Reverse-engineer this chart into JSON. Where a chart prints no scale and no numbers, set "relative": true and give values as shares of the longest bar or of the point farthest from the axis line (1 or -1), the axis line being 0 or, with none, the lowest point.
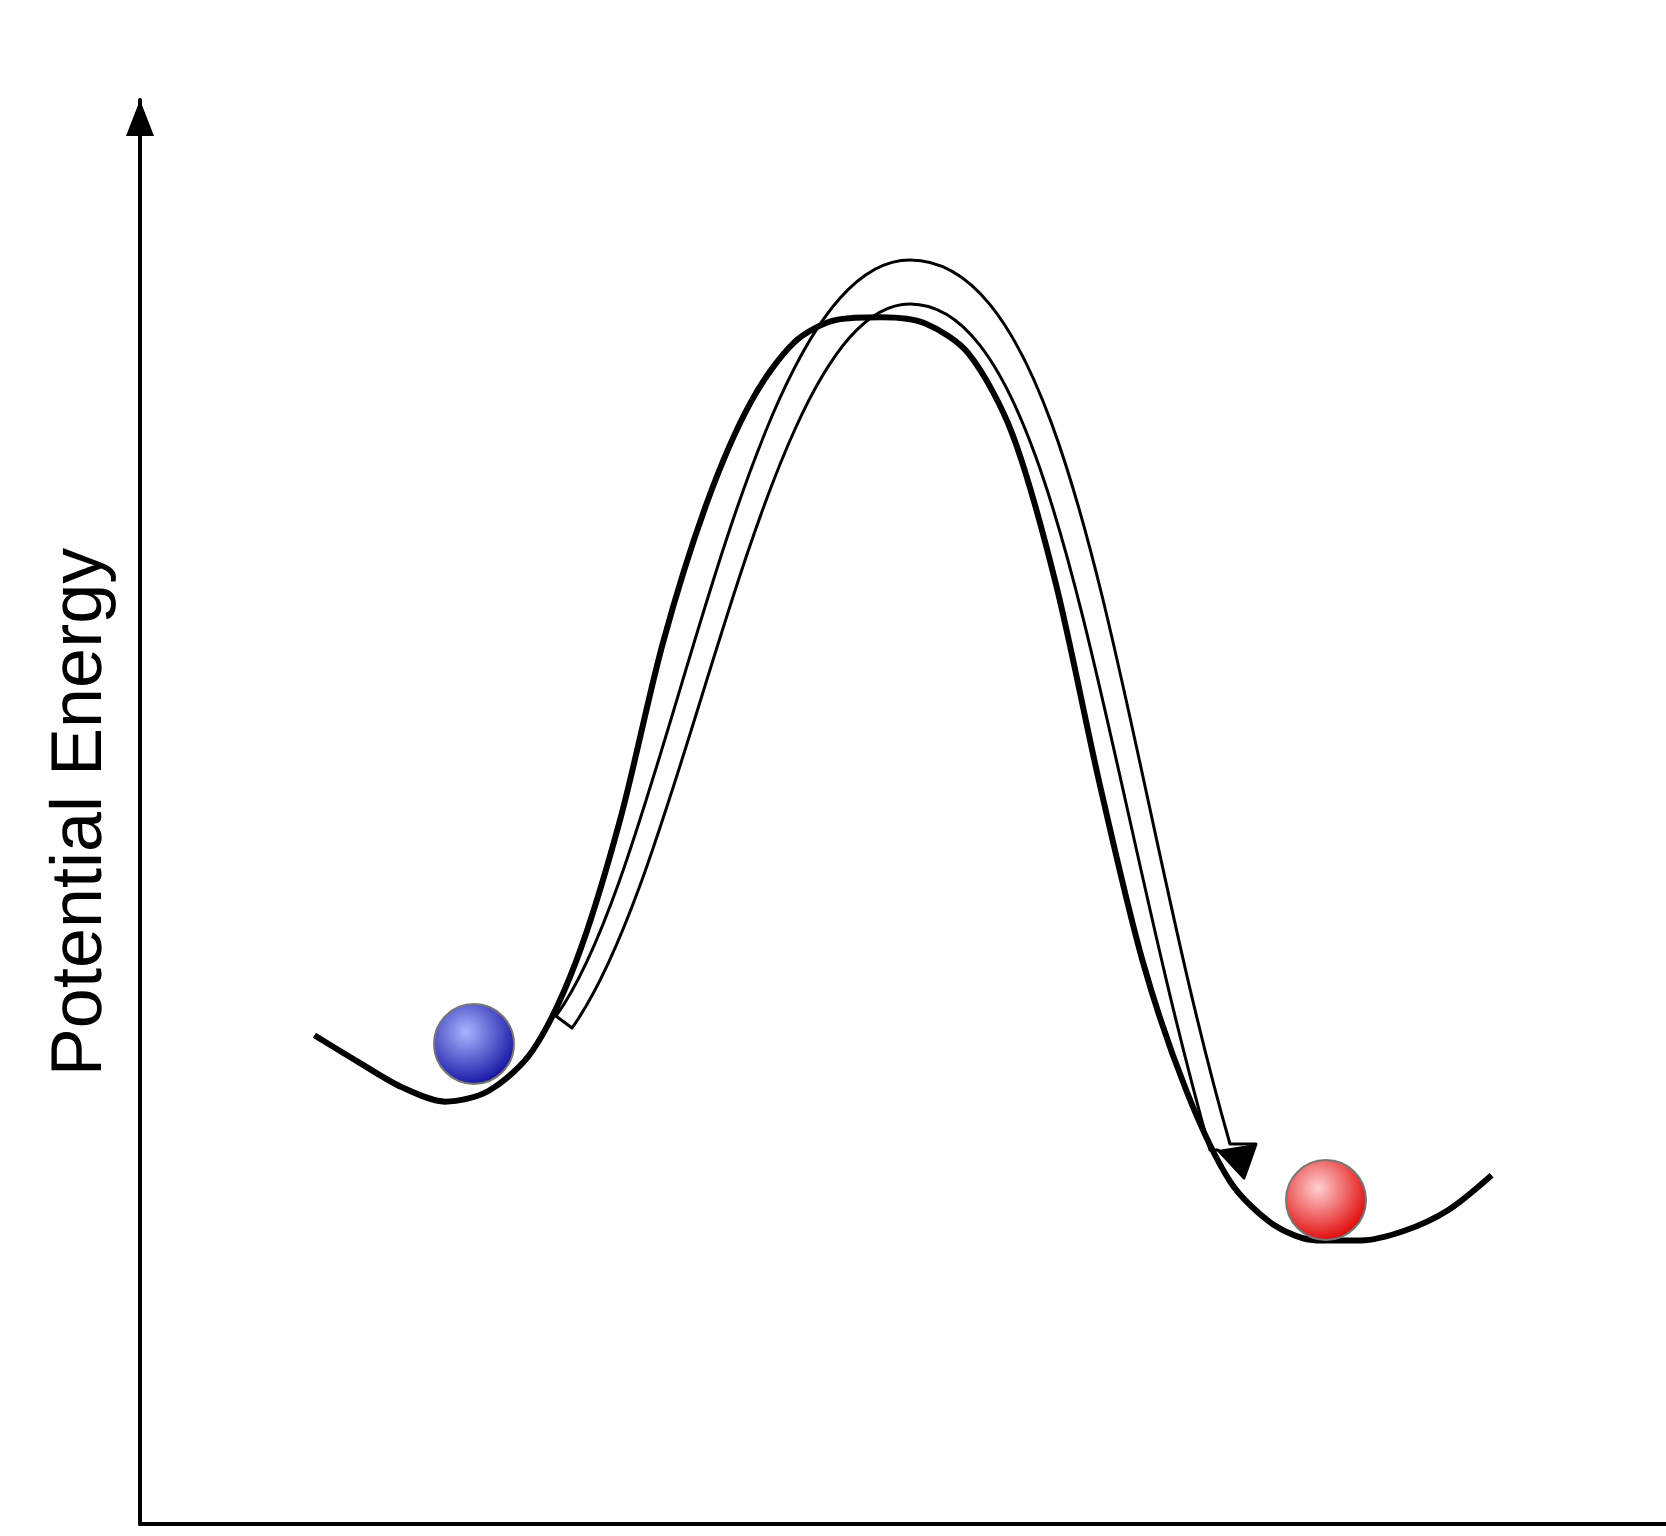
{
  "chart_data": {
    "type": "line",
    "relative": true,
    "ylabel": "Potential Energy",
    "color": "#000000",
    "marker": "none",
    "line_style": "solid",
    "grid": false,
    "categories": [
      null,
      null,
      null,
      null,
      null,
      null,
      null,
      null,
      null,
      null,
      null,
      null,
      null,
      null,
      null,
      null,
      null,
      null,
      null,
      null,
      null,
      null,
      null,
      null,
      null,
      null,
      null,
      null,
      null,
      null,
      null,
      null,
      null,
      null,
      null,
      null
    ],
    "values": [
      null,
      null,
      null,
      null,
      0.405,
      0.383,
      0.362,
      0.35,
      0.359,
      0.392,
      0.466,
      0.582,
      0.731,
      0.846,
      0.929,
      0.979,
      0.998,
      1,
      0.995,
      0.97,
      0.904,
      0.78,
      0.615,
      0.466,
      0.359,
      0.284,
      0.248,
      0.235,
      0.235,
      0.243,
      0.26,
      0.289,
      null,
      null,
      null,
      null
    ]
  }
}
